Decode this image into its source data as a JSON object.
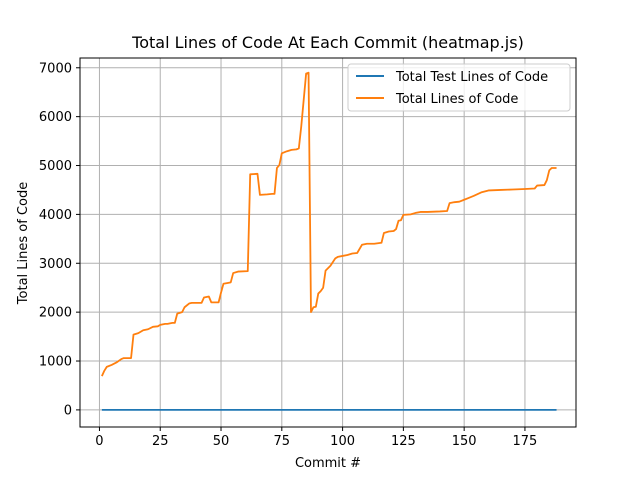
{
  "chart_data": {
    "type": "line",
    "title": "Total Lines of Code At Each Commit (heatmap.js)",
    "xlabel": "Commit #",
    "ylabel": "Total Lines of Code",
    "xlim": [
      -8,
      196
    ],
    "ylim": [
      -350,
      7200
    ],
    "xticks": [
      0,
      25,
      50,
      75,
      100,
      125,
      150,
      175
    ],
    "yticks": [
      0,
      1000,
      2000,
      3000,
      4000,
      5000,
      6000,
      7000
    ],
    "grid": true,
    "legend_position": "top-right",
    "series": [
      {
        "name": "Total Test Lines of Code",
        "color": "#1f77b4",
        "points": [
          [
            1,
            0
          ],
          [
            188,
            0
          ]
        ]
      },
      {
        "name": "Total Lines of Code",
        "color": "#ff7f0e",
        "points": [
          [
            1,
            690
          ],
          [
            2,
            800
          ],
          [
            3,
            880
          ],
          [
            5,
            920
          ],
          [
            7,
            970
          ],
          [
            9,
            1040
          ],
          [
            10,
            1060
          ],
          [
            13,
            1060
          ],
          [
            14,
            1540
          ],
          [
            16,
            1570
          ],
          [
            18,
            1630
          ],
          [
            20,
            1650
          ],
          [
            22,
            1700
          ],
          [
            24,
            1710
          ],
          [
            25,
            1740
          ],
          [
            27,
            1760
          ],
          [
            28,
            1760
          ],
          [
            30,
            1780
          ],
          [
            31,
            1780
          ],
          [
            32,
            1970
          ],
          [
            34,
            2000
          ],
          [
            35,
            2100
          ],
          [
            37,
            2180
          ],
          [
            38,
            2190
          ],
          [
            42,
            2190
          ],
          [
            43,
            2300
          ],
          [
            45,
            2320
          ],
          [
            46,
            2200
          ],
          [
            49,
            2200
          ],
          [
            50,
            2400
          ],
          [
            51,
            2580
          ],
          [
            53,
            2600
          ],
          [
            54,
            2610
          ],
          [
            55,
            2800
          ],
          [
            57,
            2830
          ],
          [
            61,
            2840
          ],
          [
            62,
            4820
          ],
          [
            65,
            4830
          ],
          [
            66,
            4400
          ],
          [
            69,
            4410
          ],
          [
            71,
            4420
          ],
          [
            72,
            4420
          ],
          [
            73,
            4950
          ],
          [
            74,
            5010
          ],
          [
            75,
            5250
          ],
          [
            77,
            5290
          ],
          [
            79,
            5320
          ],
          [
            81,
            5330
          ],
          [
            82,
            5350
          ],
          [
            83,
            5800
          ],
          [
            85,
            6880
          ],
          [
            86,
            6900
          ],
          [
            87,
            2000
          ],
          [
            88,
            2100
          ],
          [
            89,
            2110
          ],
          [
            90,
            2380
          ],
          [
            91,
            2430
          ],
          [
            92,
            2500
          ],
          [
            93,
            2850
          ],
          [
            95,
            2950
          ],
          [
            97,
            3100
          ],
          [
            98,
            3130
          ],
          [
            100,
            3150
          ],
          [
            102,
            3170
          ],
          [
            104,
            3200
          ],
          [
            106,
            3210
          ],
          [
            108,
            3380
          ],
          [
            110,
            3400
          ],
          [
            113,
            3400
          ],
          [
            116,
            3420
          ],
          [
            117,
            3620
          ],
          [
            119,
            3650
          ],
          [
            121,
            3660
          ],
          [
            122,
            3700
          ],
          [
            123,
            3870
          ],
          [
            124,
            3880
          ],
          [
            125,
            3990
          ],
          [
            128,
            4000
          ],
          [
            130,
            4030
          ],
          [
            132,
            4050
          ],
          [
            135,
            4050
          ],
          [
            140,
            4060
          ],
          [
            143,
            4070
          ],
          [
            144,
            4230
          ],
          [
            146,
            4250
          ],
          [
            148,
            4260
          ],
          [
            150,
            4300
          ],
          [
            152,
            4340
          ],
          [
            154,
            4380
          ],
          [
            157,
            4450
          ],
          [
            160,
            4490
          ],
          [
            165,
            4500
          ],
          [
            170,
            4510
          ],
          [
            175,
            4520
          ],
          [
            179,
            4530
          ],
          [
            180,
            4590
          ],
          [
            183,
            4600
          ],
          [
            184,
            4700
          ],
          [
            185,
            4900
          ],
          [
            186,
            4950
          ],
          [
            188,
            4950
          ]
        ]
      }
    ]
  }
}
